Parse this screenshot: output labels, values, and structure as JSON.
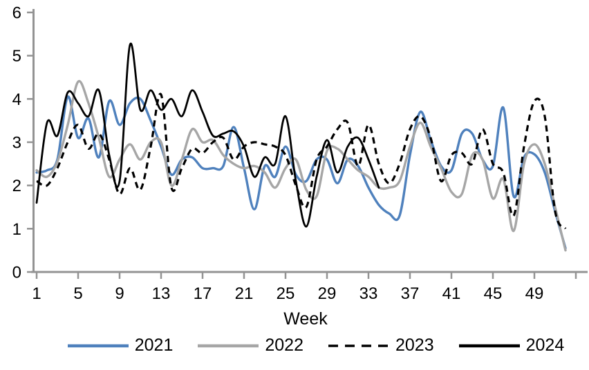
{
  "chart_data": {
    "type": "line",
    "title": "",
    "xlabel": "Week",
    "ylabel": "",
    "xlim": [
      1,
      53
    ],
    "ylim": [
      0,
      6
    ],
    "grid": false,
    "legend_position": "bottom",
    "smoothed_lines": true,
    "axis_color": "#939393",
    "text_color": "#000000",
    "y_ticks": [
      0,
      1,
      2,
      3,
      4,
      5,
      6
    ],
    "x_tick_labels": [
      1,
      5,
      9,
      13,
      17,
      21,
      25,
      29,
      33,
      37,
      41,
      45,
      49
    ],
    "x_tick_marks": [
      1,
      5,
      9,
      13,
      17,
      21,
      25,
      29,
      33,
      37,
      41,
      45,
      49,
      53
    ],
    "x": [
      1,
      2,
      3,
      4,
      5,
      6,
      7,
      8,
      9,
      10,
      11,
      12,
      13,
      14,
      15,
      16,
      17,
      18,
      19,
      20,
      21,
      22,
      23,
      24,
      25,
      26,
      27,
      28,
      29,
      30,
      31,
      32,
      33,
      34,
      35,
      36,
      37,
      38,
      39,
      40,
      41,
      42,
      43,
      44,
      45,
      46,
      47,
      48,
      49,
      50,
      51,
      52
    ],
    "series": [
      {
        "name": "2021",
        "color": "#4F81BD",
        "dash": false,
        "values": [
          2.3,
          2.35,
          2.6,
          4.05,
          3.1,
          3.55,
          2.65,
          3.95,
          3.4,
          3.9,
          4.0,
          3.5,
          2.9,
          2.25,
          2.6,
          2.65,
          2.4,
          2.4,
          2.45,
          3.35,
          2.4,
          1.45,
          2.45,
          2.2,
          2.9,
          2.25,
          2.1,
          2.6,
          2.6,
          2.05,
          2.6,
          2.45,
          1.95,
          1.55,
          1.35,
          1.3,
          2.7,
          3.7,
          3.05,
          2.45,
          2.35,
          3.2,
          3.2,
          2.6,
          2.45,
          3.8,
          1.75,
          2.65,
          2.72,
          2.3,
          1.4,
          0.55
        ]
      },
      {
        "name": "2022",
        "color": "#A6A6A6",
        "dash": false,
        "values": [
          2.35,
          2.2,
          2.55,
          3.4,
          4.4,
          3.9,
          3.1,
          2.2,
          2.6,
          2.95,
          2.6,
          3.0,
          3.0,
          2.0,
          2.6,
          3.3,
          3.0,
          3.05,
          2.7,
          2.5,
          2.4,
          2.45,
          2.3,
          1.95,
          2.4,
          2.6,
          1.9,
          1.75,
          2.8,
          2.85,
          2.6,
          2.35,
          2.2,
          1.95,
          1.95,
          2.1,
          2.9,
          3.45,
          2.9,
          2.4,
          1.85,
          1.8,
          2.7,
          2.6,
          1.7,
          2.15,
          0.95,
          2.5,
          2.95,
          2.5,
          1.5,
          0.5
        ]
      },
      {
        "name": "2023",
        "color": "#000000",
        "dash": true,
        "values": [
          2.1,
          2.0,
          2.4,
          3.0,
          3.4,
          2.85,
          3.2,
          2.6,
          1.8,
          2.4,
          1.9,
          2.9,
          4.1,
          1.95,
          2.4,
          2.85,
          2.75,
          3.0,
          3.1,
          2.6,
          2.9,
          3.0,
          2.95,
          2.9,
          2.7,
          2.0,
          1.5,
          2.6,
          2.9,
          3.3,
          3.45,
          2.45,
          3.4,
          2.5,
          2.05,
          2.5,
          3.3,
          3.6,
          3.1,
          2.1,
          2.7,
          2.75,
          2.5,
          3.3,
          2.5,
          2.3,
          1.3,
          2.9,
          3.95,
          3.6,
          1.4,
          1.0
        ]
      },
      {
        "name": "2024",
        "color": "#000000",
        "dash": false,
        "values": [
          1.6,
          3.45,
          3.15,
          4.15,
          3.9,
          3.6,
          4.2,
          2.7,
          2.1,
          5.25,
          3.75,
          4.2,
          3.75,
          4.0,
          3.6,
          4.2,
          3.7,
          3.15,
          3.2,
          3.25,
          2.9,
          2.2,
          2.65,
          2.5,
          3.6,
          2.1,
          1.05,
          2.2,
          3.05,
          2.3,
          2.9,
          3.1,
          2.6,
          1.95
        ]
      }
    ]
  }
}
